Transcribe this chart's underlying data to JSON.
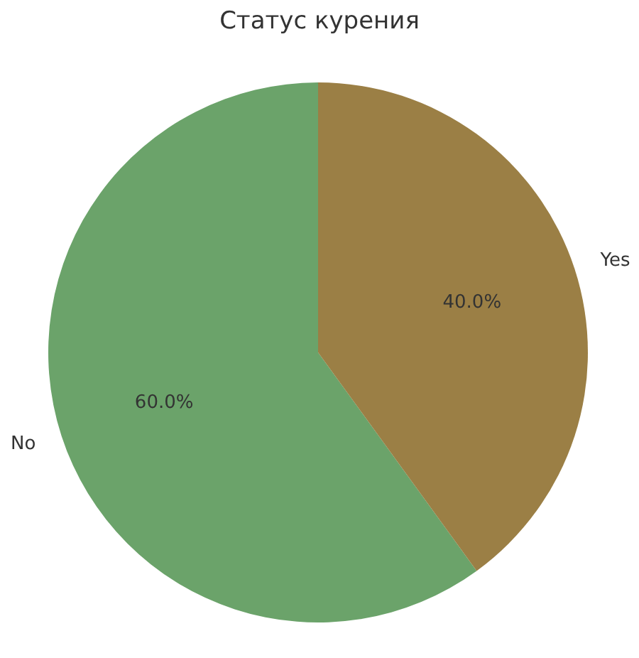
{
  "chart_data": {
    "type": "pie",
    "title": "Статус курения",
    "categories": [
      "No",
      "Yes"
    ],
    "values": [
      60,
      40
    ],
    "colors": [
      "#6ba36a",
      "#9b7f45"
    ],
    "value_labels": [
      "60.0%",
      "40.0%"
    ]
  }
}
